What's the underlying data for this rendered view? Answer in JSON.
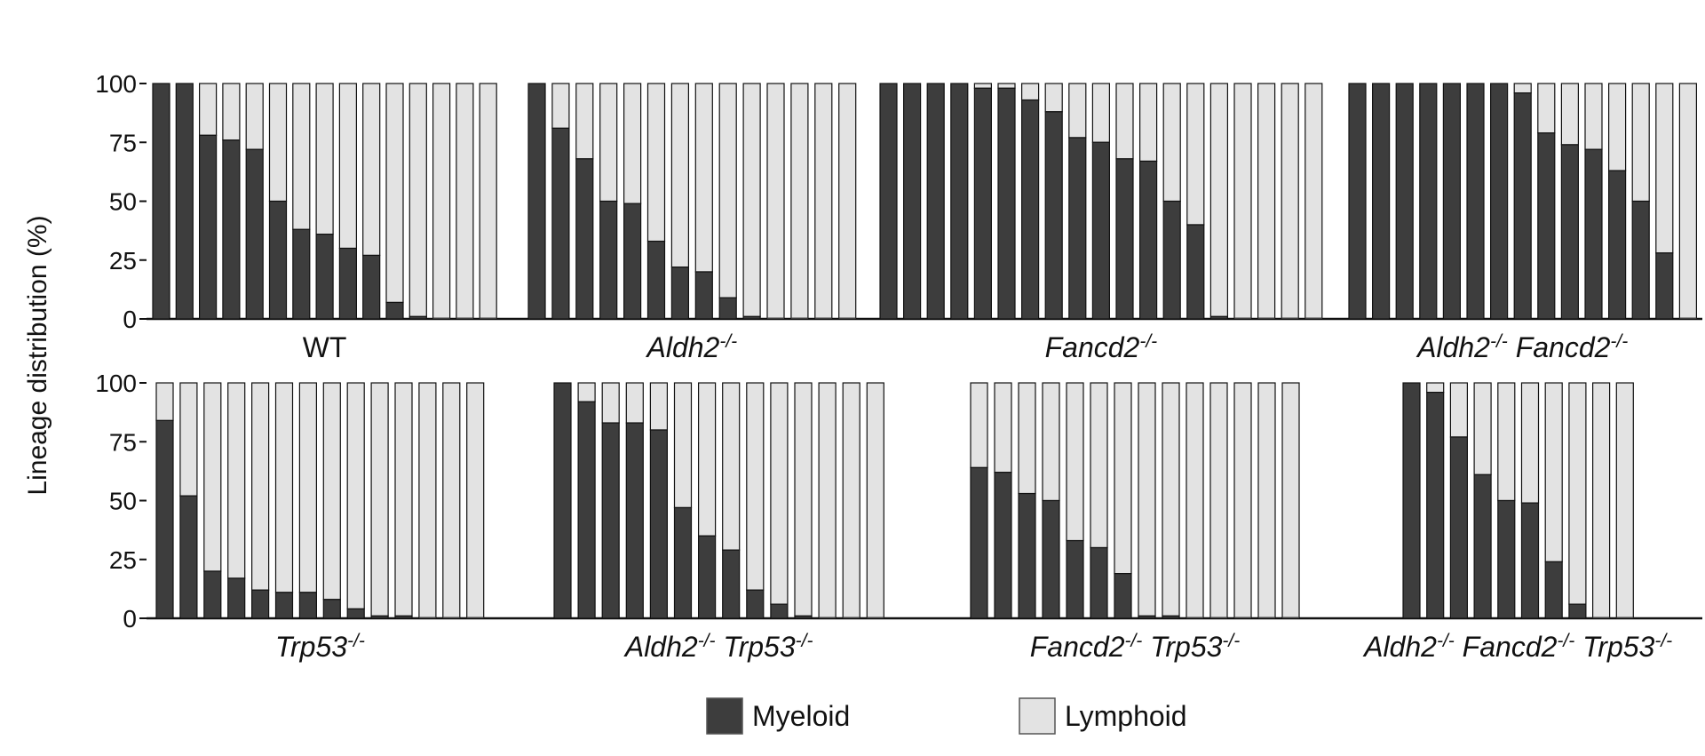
{
  "chart_data": {
    "type": "bar",
    "stacked": true,
    "ylabel": "Lineage distribution (%)",
    "ylim": [
      0,
      100
    ],
    "yticks": [
      0,
      25,
      50,
      75,
      100
    ],
    "grid": false,
    "legend": {
      "placement": "bottom-center",
      "entries": [
        {
          "name": "Myeloid",
          "color": "#3d3d3d"
        },
        {
          "name": "Lymphoid",
          "color": "#e3e3e3"
        }
      ]
    },
    "series": [
      {
        "name": "Myeloid",
        "color": "#3d3d3d"
      },
      {
        "name": "Lymphoid",
        "color": "#e3e3e3"
      }
    ],
    "groups": [
      {
        "label_base": "WT",
        "label_sup": "",
        "italic": false,
        "row": 1,
        "myeloid": [
          100,
          100,
          78,
          76,
          72,
          50,
          38,
          36,
          30,
          27,
          7,
          1,
          0,
          0,
          0
        ]
      },
      {
        "label_base": "Aldh2",
        "label_sup": "-/-",
        "italic": true,
        "row": 1,
        "myeloid": [
          100,
          81,
          68,
          50,
          49,
          33,
          22,
          20,
          9,
          1,
          0,
          0,
          0,
          0
        ]
      },
      {
        "label_base": "Fancd2",
        "label_sup": "-/-",
        "italic": true,
        "row": 1,
        "myeloid": [
          100,
          100,
          100,
          100,
          98,
          98,
          93,
          88,
          77,
          75,
          68,
          67,
          50,
          40,
          1,
          0,
          0,
          0,
          0
        ]
      },
      {
        "label_base": "Aldh2",
        "label_sup": "-/-",
        "label_base2": "Fancd2",
        "label_sup2": "-/-",
        "italic": true,
        "row": 1,
        "myeloid": [
          100,
          100,
          100,
          100,
          100,
          100,
          100,
          96,
          79,
          74,
          72,
          63,
          50,
          28,
          0
        ]
      },
      {
        "label_base": "Trp53",
        "label_sup": "-/-",
        "italic": true,
        "row": 2,
        "myeloid": [
          84,
          52,
          20,
          17,
          12,
          11,
          11,
          8,
          4,
          1,
          1,
          0,
          0,
          0
        ]
      },
      {
        "label_base": "Aldh2",
        "label_sup": "-/-",
        "label_base2": "Trp53",
        "label_sup2": "-/-",
        "italic": true,
        "row": 2,
        "myeloid": [
          100,
          92,
          83,
          83,
          80,
          47,
          35,
          29,
          12,
          6,
          1,
          0,
          0,
          0
        ]
      },
      {
        "label_base": "Fancd2",
        "label_sup": "-/-",
        "label_base2": "Trp53",
        "label_sup2": "-/-",
        "italic": true,
        "row": 2,
        "myeloid": [
          64,
          62,
          53,
          50,
          33,
          30,
          19,
          1,
          1,
          0,
          0,
          0,
          0,
          0
        ]
      },
      {
        "label_base": "Aldh2",
        "label_sup": "-/-",
        "label_base2": "Fancd2",
        "label_sup2": "-/-",
        "label_base3": "Trp53",
        "label_sup3": "-/-",
        "italic": true,
        "row": 2,
        "myeloid": [
          100,
          96,
          77,
          61,
          50,
          49,
          24,
          6,
          0,
          0
        ]
      }
    ]
  }
}
